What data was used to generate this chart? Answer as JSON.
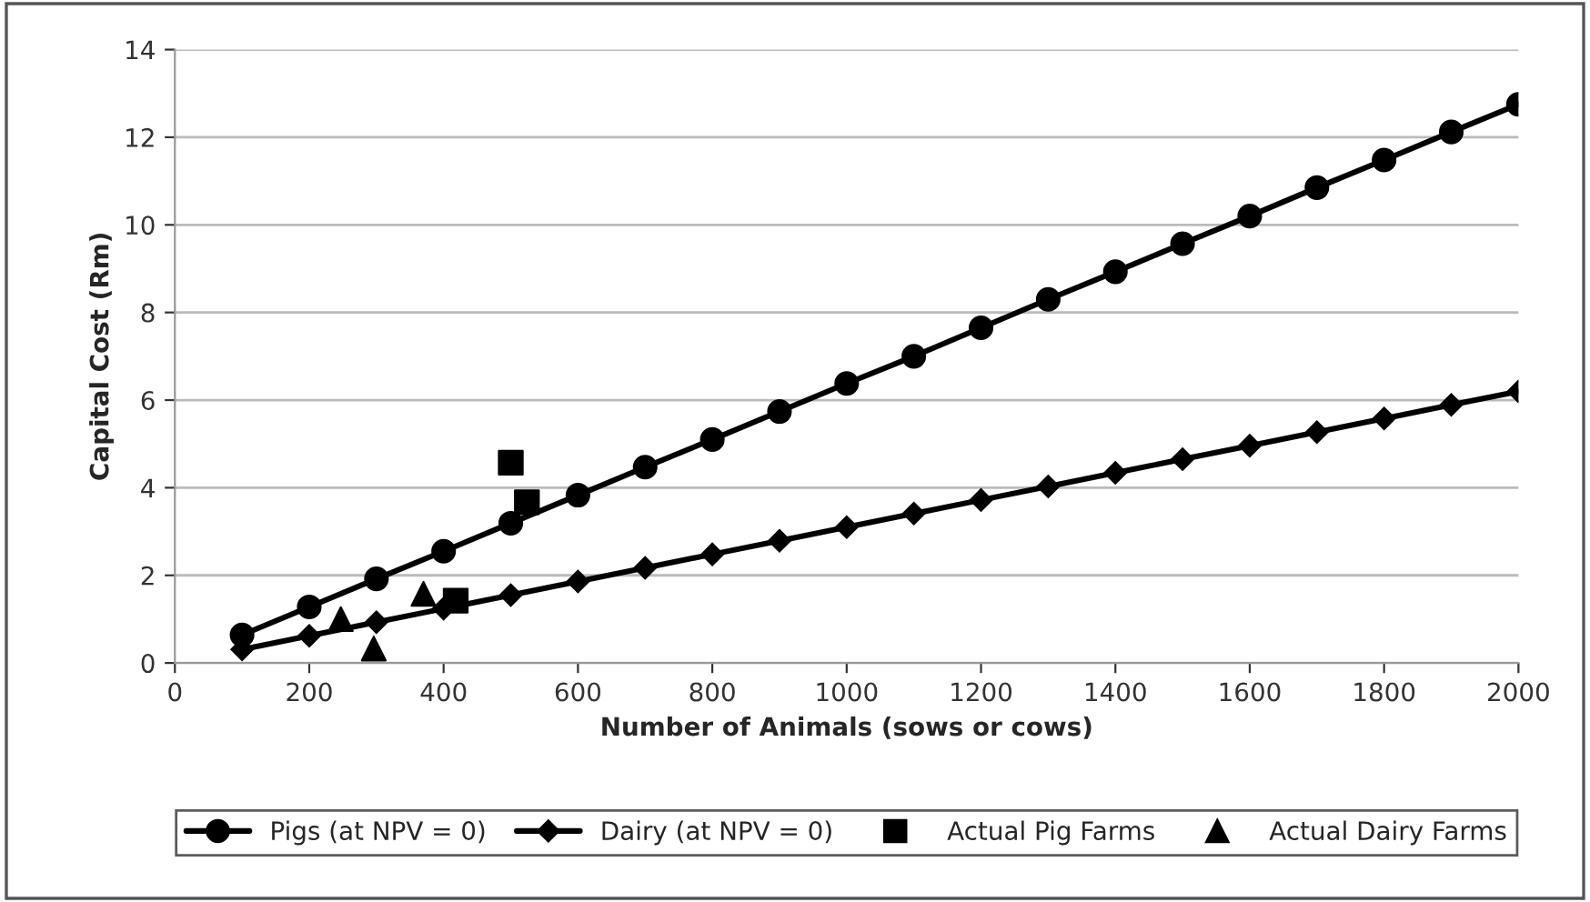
{
  "chart_data": {
    "type": "line",
    "xlabel": "Number of Animals (sows or cows)",
    "ylabel": "Capital Cost (Rm)",
    "series": [
      {
        "name": "Pigs (at NPV = 0)",
        "color": "#000000",
        "marker": "circle",
        "x": [
          100,
          200,
          300,
          400,
          500,
          600,
          700,
          800,
          900,
          1000,
          1100,
          1200,
          1300,
          1400,
          1500,
          1600,
          1700,
          1800,
          1900,
          2000
        ],
        "values": [
          0.64,
          1.28,
          1.92,
          2.55,
          3.19,
          3.83,
          4.47,
          5.1,
          5.74,
          6.38,
          7.0,
          7.65,
          8.3,
          8.93,
          9.57,
          10.2,
          10.85,
          11.48,
          12.12,
          12.75
        ]
      },
      {
        "name": "Dairy (at NPV = 0)",
        "color": "#000000",
        "marker": "diamond",
        "x": [
          100,
          200,
          300,
          400,
          500,
          600,
          700,
          800,
          900,
          1000,
          1100,
          1200,
          1300,
          1400,
          1500,
          1600,
          1700,
          1800,
          1900,
          2000
        ],
        "values": [
          0.31,
          0.62,
          0.93,
          1.24,
          1.55,
          1.86,
          2.17,
          2.48,
          2.79,
          3.1,
          3.41,
          3.72,
          4.03,
          4.34,
          4.65,
          4.96,
          5.27,
          5.58,
          5.89,
          6.2
        ]
      },
      {
        "name": "Actual Pig Farms",
        "type": "scatter",
        "color": "#000000",
        "marker": "square",
        "x": [
          500,
          524,
          418
        ],
        "values": [
          4.57,
          3.67,
          1.42
        ]
      },
      {
        "name": "Actual Dairy Farms",
        "type": "scatter",
        "color": "#000000",
        "marker": "triangle",
        "x": [
          247,
          296,
          370
        ],
        "values": [
          1.0,
          0.33,
          1.58
        ]
      }
    ],
    "xlim": [
      0,
      2000
    ],
    "xticks": [
      0,
      200,
      400,
      600,
      800,
      1000,
      1200,
      1400,
      1600,
      1800,
      2000
    ],
    "ylim": [
      0,
      14
    ],
    "yticks": [
      0,
      2,
      4,
      6,
      8,
      10,
      12,
      14
    ],
    "grid": "y",
    "legend": "bottom"
  }
}
